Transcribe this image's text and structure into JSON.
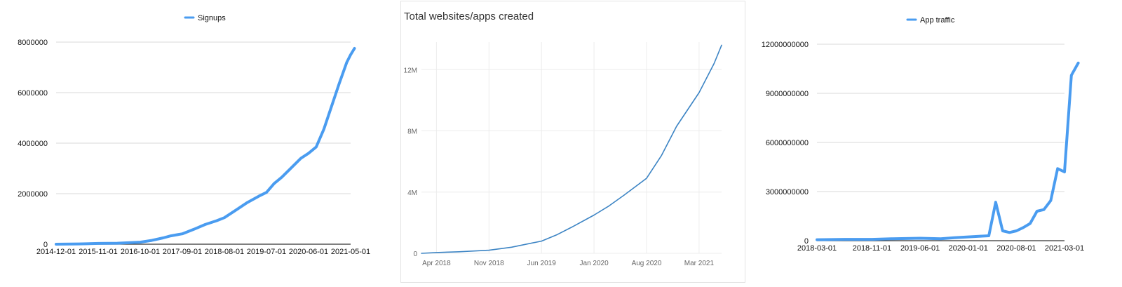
{
  "chart_data": [
    {
      "type": "line",
      "title": "",
      "xlabel": "",
      "ylabel": "",
      "legend": {
        "position": "top",
        "entries": [
          "Signups"
        ]
      },
      "color": "#4a9cf0",
      "grid": true,
      "ylim": [
        0,
        8000000
      ],
      "y_ticks": [
        0,
        2000000,
        4000000,
        6000000,
        8000000
      ],
      "y_tick_labels": [
        "0",
        "2000000",
        "4000000",
        "6000000",
        "8000000"
      ],
      "x_ticks": [
        "2014-12-01",
        "2015-11-01",
        "2016-10-01",
        "2017-09-01",
        "2018-08-01",
        "2019-07-01",
        "2020-06-01",
        "2021-05-01"
      ],
      "series": [
        {
          "name": "Signups",
          "x": [
            "2014-12-01",
            "2015-06-01",
            "2015-11-01",
            "2016-04-01",
            "2016-10-01",
            "2017-01-01",
            "2017-04-01",
            "2017-06-01",
            "2017-09-01",
            "2017-12-01",
            "2018-03-01",
            "2018-06-01",
            "2018-08-01",
            "2018-11-01",
            "2019-02-01",
            "2019-05-01",
            "2019-07-01",
            "2019-09-01",
            "2019-11-01",
            "2020-01-01",
            "2020-04-01",
            "2020-06-01",
            "2020-08-01",
            "2020-10-01",
            "2020-12-01",
            "2021-02-01",
            "2021-04-01",
            "2021-05-01",
            "2021-06-01"
          ],
          "values": [
            0,
            10000,
            30000,
            40000,
            80000,
            150000,
            250000,
            330000,
            410000,
            590000,
            780000,
            930000,
            1050000,
            1350000,
            1650000,
            1900000,
            2050000,
            2400000,
            2650000,
            2950000,
            3400000,
            3600000,
            3850000,
            4550000,
            5450000,
            6350000,
            7200000,
            7500000,
            7750000
          ]
        }
      ]
    },
    {
      "type": "line",
      "title": "Total websites/apps created",
      "xlabel": "",
      "ylabel": "",
      "color": "#3c84c4",
      "grid": true,
      "ylim": [
        0,
        13800000
      ],
      "y_ticks": [
        0,
        4000000,
        8000000,
        12000000
      ],
      "y_tick_labels": [
        "0",
        "4M",
        "8M",
        "12M"
      ],
      "x_ticks": [
        "Apr 2018",
        "Nov 2018",
        "Jun 2019",
        "Jan 2020",
        "Aug 2020",
        "Mar 2021"
      ],
      "series": [
        {
          "name": "",
          "x": [
            "Feb 2018",
            "Apr 2018",
            "Jul 2018",
            "Nov 2018",
            "Feb 2019",
            "Jun 2019",
            "Aug 2019",
            "Oct 2019",
            "Jan 2020",
            "Mar 2020",
            "May 2020",
            "Aug 2020",
            "Oct 2020",
            "Dec 2020",
            "Mar 2021",
            "May 2021",
            "Jun 2021"
          ],
          "values": [
            0,
            50000,
            100000,
            200000,
            400000,
            800000,
            1200000,
            1700000,
            2500000,
            3100000,
            3800000,
            4900000,
            6400000,
            8300000,
            10500000,
            12400000,
            13600000
          ]
        }
      ]
    },
    {
      "type": "line",
      "title": "",
      "xlabel": "",
      "ylabel": "",
      "legend": {
        "position": "top",
        "entries": [
          "App traffic"
        ]
      },
      "color": "#4a9cf0",
      "grid": true,
      "ylim": [
        0,
        12000000000
      ],
      "y_ticks": [
        0,
        3000000000,
        6000000000,
        9000000000,
        12000000000
      ],
      "y_tick_labels": [
        "0",
        "3000000000",
        "6000000000",
        "9000000000",
        "12000000000"
      ],
      "x_ticks": [
        "2018-03-01",
        "2018-11-01",
        "2019-06-01",
        "2020-01-01",
        "2020-08-01",
        "2021-03-01"
      ],
      "series": [
        {
          "name": "App traffic",
          "x": [
            "2018-03-01",
            "2018-07-01",
            "2018-11-01",
            "2019-02-01",
            "2019-06-01",
            "2019-09-01",
            "2019-11-01",
            "2020-01-01",
            "2020-03-01",
            "2020-04-01",
            "2020-05-01",
            "2020-06-01",
            "2020-07-01",
            "2020-08-01",
            "2020-09-01",
            "2020-10-01",
            "2020-11-01",
            "2020-12-01",
            "2021-01-01",
            "2021-02-01",
            "2021-03-01",
            "2021-04-01",
            "2021-05-01"
          ],
          "values": [
            60000000,
            80000000,
            80000000,
            120000000,
            150000000,
            120000000,
            180000000,
            230000000,
            280000000,
            300000000,
            2350000000,
            600000000,
            500000000,
            600000000,
            800000000,
            1050000000,
            1800000000,
            1900000000,
            2450000000,
            4400000000,
            4200000000,
            10100000000,
            10850000000
          ]
        }
      ]
    }
  ]
}
